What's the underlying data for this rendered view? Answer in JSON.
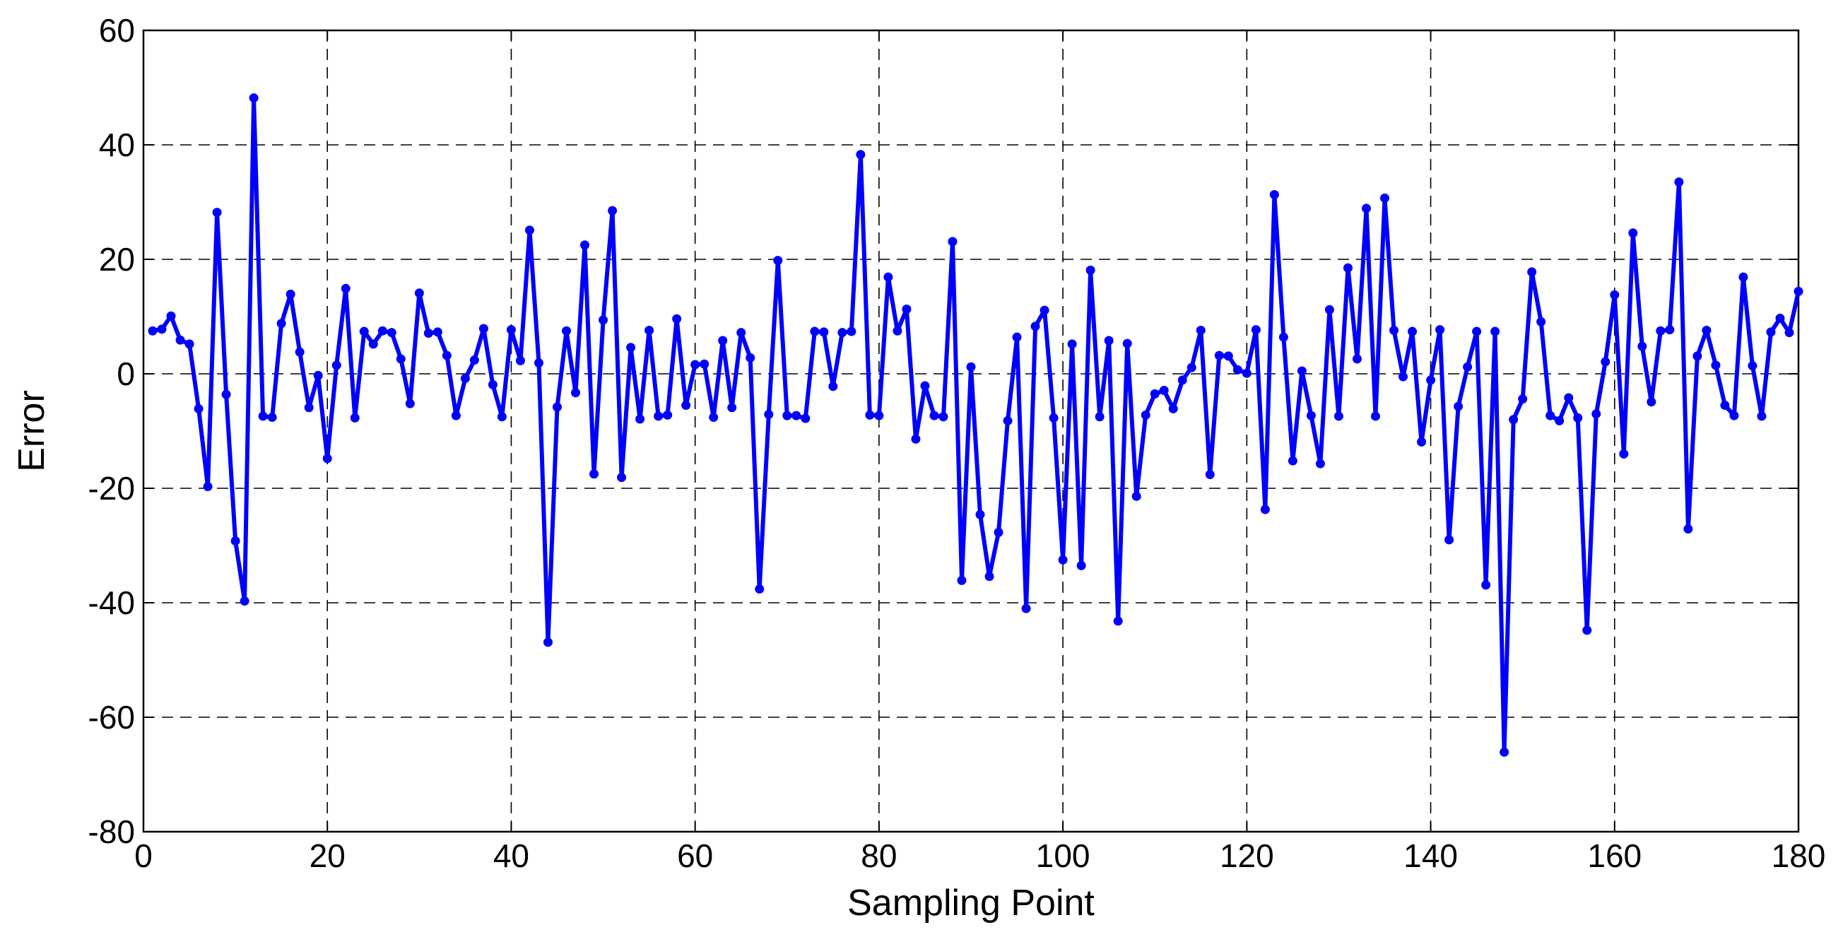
{
  "chart_data": {
    "type": "line",
    "title": "",
    "xlabel": "Sampling Point",
    "ylabel": "Error",
    "xlim": [
      0,
      180
    ],
    "ylim": [
      -80,
      60
    ],
    "xticks": [
      0,
      20,
      40,
      60,
      80,
      100,
      120,
      140,
      160,
      180
    ],
    "yticks": [
      -80,
      -60,
      -40,
      -20,
      0,
      20,
      40,
      60
    ],
    "grid": true,
    "grid_style": "dashed",
    "legend": "none",
    "line_color": "#0000ff",
    "marker": "circle",
    "x": [
      1,
      2,
      3,
      4,
      5,
      6,
      7,
      8,
      9,
      10,
      11,
      12,
      13,
      14,
      15,
      16,
      17,
      18,
      19,
      20,
      21,
      22,
      23,
      24,
      25,
      26,
      27,
      28,
      29,
      30,
      31,
      32,
      33,
      34,
      35,
      36,
      37,
      38,
      39,
      40,
      41,
      42,
      43,
      44,
      45,
      46,
      47,
      48,
      49,
      50,
      51,
      52,
      53,
      54,
      55,
      56,
      57,
      58,
      59,
      60,
      61,
      62,
      63,
      64,
      65,
      66,
      67,
      68,
      69,
      70,
      71,
      72,
      73,
      74,
      75,
      76,
      77,
      78,
      79,
      80,
      81,
      82,
      83,
      84,
      85,
      86,
      87,
      88,
      89,
      90,
      91,
      92,
      93,
      94,
      95,
      96,
      97,
      98,
      99,
      100,
      101,
      102,
      103,
      104,
      105,
      106,
      107,
      108,
      109,
      110,
      111,
      112,
      113,
      114,
      115,
      116,
      117,
      118,
      119,
      120,
      121,
      122,
      123,
      124,
      125,
      126,
      127,
      128,
      129,
      130,
      131,
      132,
      133,
      134,
      135,
      136,
      137,
      138,
      139,
      140,
      141,
      142,
      143,
      144,
      145,
      146,
      147,
      148,
      149,
      150,
      151,
      152,
      153,
      154,
      155,
      156,
      157,
      158,
      159,
      160,
      161,
      162,
      163,
      164,
      165,
      166,
      167,
      168,
      169,
      170,
      171,
      172,
      173,
      174,
      175,
      176,
      177,
      178,
      179,
      180
    ],
    "y": [
      7.5,
      7.8,
      10.1,
      5.9,
      5.2,
      -6.1,
      -19.7,
      28.2,
      -3.6,
      -29.2,
      -39.7,
      48.2,
      -7.4,
      -7.6,
      8.8,
      13.9,
      3.8,
      -5.9,
      -0.3,
      -14.8,
      1.5,
      14.9,
      -7.7,
      7.4,
      5.2,
      7.5,
      7.2,
      2.6,
      -5.2,
      14.1,
      7.1,
      7.3,
      3.2,
      -7.3,
      -0.8,
      2.4,
      7.9,
      -1.9,
      -7.5,
      7.7,
      2.3,
      25.1,
      1.9,
      -46.9,
      -5.8,
      7.5,
      -3.3,
      22.5,
      -17.5,
      9.4,
      28.5,
      -18.1,
      4.6,
      -7.9,
      7.6,
      -7.4,
      -7.2,
      9.6,
      -5.5,
      1.6,
      1.7,
      -7.6,
      5.8,
      -5.9,
      7.2,
      2.8,
      -37.6,
      -7.1,
      19.8,
      -7.3,
      -7.3,
      -7.8,
      7.4,
      7.3,
      -2.2,
      7.2,
      7.4,
      38.3,
      -7.2,
      -7.3,
      16.9,
      7.5,
      11.3,
      -11.4,
      -2.1,
      -7.3,
      -7.5,
      23.1,
      -36.1,
      1.2,
      -24.6,
      -35.4,
      -27.7,
      -8.2,
      6.4,
      -41,
      8.3,
      11.1,
      -7.7,
      -32.5,
      5.2,
      -33.5,
      18.1,
      -7.5,
      5.8,
      -43.2,
      5.3,
      -21.4,
      -7.2,
      -3.5,
      -2.9,
      -6.1,
      -1.1,
      1.1,
      7.6,
      -17.6,
      3.2,
      3.1,
      0.7,
      0.1,
      7.7,
      -23.7,
      31.3,
      6.4,
      -15.2,
      0.5,
      -7.3,
      -15.7,
      11.2,
      -7.4,
      18.5,
      2.6,
      28.9,
      -7.4,
      30.7,
      7.6,
      -0.5,
      7.4,
      -11.9,
      -1.1,
      7.7,
      -29,
      -5.7,
      1.2,
      7.4,
      -36.9,
      7.4,
      -66.1,
      -8,
      -4.4,
      17.8,
      9.1,
      -7.3,
      -8.2,
      -4.2,
      -7.7,
      -44.8,
      -7,
      2.1,
      13.8,
      -14,
      24.6,
      4.8,
      -4.9,
      7.5,
      7.7,
      33.5,
      -27.1,
      3.1,
      7.6,
      1.5,
      -5.5,
      -7.3,
      16.9,
      1.4,
      -7.4,
      7.3,
      9.7,
      7.2,
      14.4
    ]
  }
}
